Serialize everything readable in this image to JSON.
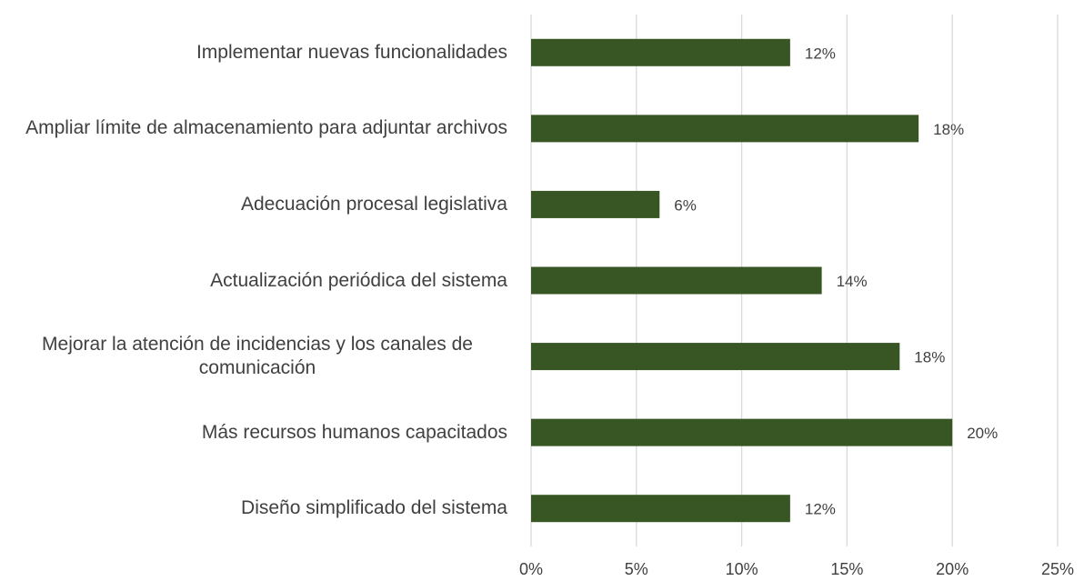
{
  "chart_data": {
    "type": "hbar",
    "categories": [
      "Implementar nuevas funcionalidades",
      "Ampliar límite de almacenamiento para adjuntar archivos",
      "Adecuación procesal legislativa",
      "Actualización periódica del sistema",
      "Mejorar la atención de incidencias y los canales de comunicación",
      "Más recursos humanos capacitados",
      "Diseño simplificado del sistema"
    ],
    "values": [
      12.3,
      18.4,
      6.1,
      13.8,
      17.5,
      20,
      12.3
    ],
    "value_labels": [
      "12%",
      "18%",
      "6%",
      "14%",
      "18%",
      "20%",
      "12%"
    ],
    "color": "#375623",
    "xlim": [
      0,
      25
    ],
    "xticks": [
      {
        "value": 0,
        "label": "0%"
      },
      {
        "value": 5,
        "label": "5%"
      },
      {
        "value": 10,
        "label": "10%"
      },
      {
        "value": 15,
        "label": "15%"
      },
      {
        "value": 20,
        "label": "20%"
      },
      {
        "value": 25,
        "label": "25%"
      }
    ],
    "grid": true
  }
}
